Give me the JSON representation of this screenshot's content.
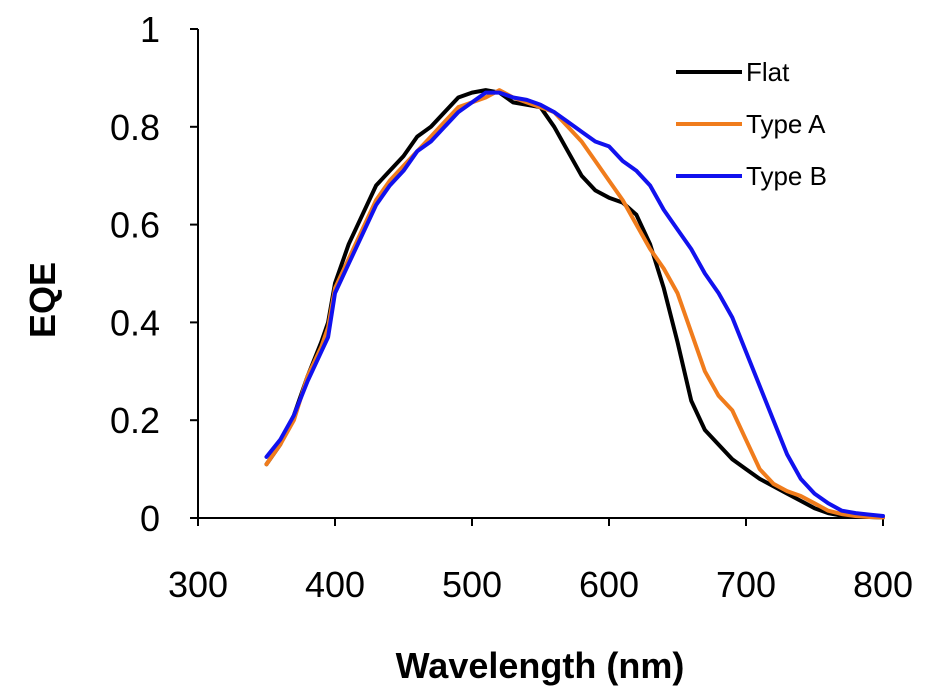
{
  "chart_data": {
    "type": "line",
    "xlabel": "Wavelength (nm)",
    "ylabel": "EQE",
    "xlim": [
      300,
      800
    ],
    "ylim": [
      0,
      1
    ],
    "xticks": [
      300,
      400,
      500,
      600,
      700,
      800
    ],
    "yticks": [
      0,
      0.2,
      0.4,
      0.6,
      0.8,
      1
    ],
    "ytick_labels": [
      "0",
      "0.2",
      "0.4",
      "0.6",
      "0.8",
      "1"
    ],
    "grid": false,
    "legend_position": "top-right",
    "series": [
      {
        "name": "Flat",
        "color": "#000000",
        "points": [
          [
            350,
            0.11
          ],
          [
            360,
            0.15
          ],
          [
            370,
            0.21
          ],
          [
            380,
            0.29
          ],
          [
            390,
            0.36
          ],
          [
            395,
            0.4
          ],
          [
            400,
            0.48
          ],
          [
            410,
            0.56
          ],
          [
            420,
            0.62
          ],
          [
            430,
            0.68
          ],
          [
            440,
            0.71
          ],
          [
            450,
            0.74
          ],
          [
            460,
            0.78
          ],
          [
            470,
            0.8
          ],
          [
            480,
            0.83
          ],
          [
            490,
            0.86
          ],
          [
            500,
            0.87
          ],
          [
            510,
            0.875
          ],
          [
            520,
            0.87
          ],
          [
            530,
            0.85
          ],
          [
            540,
            0.845
          ],
          [
            550,
            0.84
          ],
          [
            560,
            0.8
          ],
          [
            570,
            0.75
          ],
          [
            580,
            0.7
          ],
          [
            590,
            0.67
          ],
          [
            600,
            0.655
          ],
          [
            610,
            0.645
          ],
          [
            620,
            0.62
          ],
          [
            630,
            0.56
          ],
          [
            640,
            0.47
          ],
          [
            650,
            0.36
          ],
          [
            660,
            0.24
          ],
          [
            670,
            0.18
          ],
          [
            680,
            0.15
          ],
          [
            690,
            0.12
          ],
          [
            700,
            0.1
          ],
          [
            710,
            0.08
          ],
          [
            720,
            0.065
          ],
          [
            730,
            0.05
          ],
          [
            740,
            0.035
          ],
          [
            750,
            0.02
          ],
          [
            760,
            0.01
          ],
          [
            770,
            0.005
          ],
          [
            780,
            0.003
          ],
          [
            790,
            0.002
          ],
          [
            800,
            0.001
          ]
        ]
      },
      {
        "name": "Type A",
        "color": "#f07c1c",
        "points": [
          [
            350,
            0.11
          ],
          [
            360,
            0.15
          ],
          [
            370,
            0.2
          ],
          [
            380,
            0.29
          ],
          [
            390,
            0.35
          ],
          [
            395,
            0.39
          ],
          [
            400,
            0.47
          ],
          [
            410,
            0.53
          ],
          [
            420,
            0.59
          ],
          [
            430,
            0.65
          ],
          [
            440,
            0.69
          ],
          [
            450,
            0.72
          ],
          [
            460,
            0.75
          ],
          [
            470,
            0.78
          ],
          [
            480,
            0.81
          ],
          [
            490,
            0.84
          ],
          [
            500,
            0.85
          ],
          [
            510,
            0.86
          ],
          [
            520,
            0.875
          ],
          [
            530,
            0.86
          ],
          [
            540,
            0.85
          ],
          [
            550,
            0.84
          ],
          [
            560,
            0.83
          ],
          [
            570,
            0.8
          ],
          [
            580,
            0.77
          ],
          [
            590,
            0.73
          ],
          [
            600,
            0.69
          ],
          [
            610,
            0.65
          ],
          [
            620,
            0.6
          ],
          [
            630,
            0.55
          ],
          [
            640,
            0.51
          ],
          [
            650,
            0.46
          ],
          [
            660,
            0.38
          ],
          [
            670,
            0.3
          ],
          [
            680,
            0.25
          ],
          [
            690,
            0.22
          ],
          [
            700,
            0.16
          ],
          [
            710,
            0.1
          ],
          [
            720,
            0.07
          ],
          [
            730,
            0.055
          ],
          [
            740,
            0.045
          ],
          [
            750,
            0.03
          ],
          [
            760,
            0.015
          ],
          [
            770,
            0.008
          ],
          [
            780,
            0.004
          ],
          [
            790,
            0.002
          ],
          [
            800,
            0.001
          ]
        ]
      },
      {
        "name": "Type B",
        "color": "#1111ee",
        "points": [
          [
            350,
            0.125
          ],
          [
            360,
            0.16
          ],
          [
            370,
            0.21
          ],
          [
            380,
            0.28
          ],
          [
            390,
            0.34
          ],
          [
            395,
            0.37
          ],
          [
            400,
            0.46
          ],
          [
            410,
            0.52
          ],
          [
            420,
            0.58
          ],
          [
            430,
            0.64
          ],
          [
            440,
            0.68
          ],
          [
            450,
            0.71
          ],
          [
            460,
            0.75
          ],
          [
            470,
            0.77
          ],
          [
            480,
            0.8
          ],
          [
            490,
            0.83
          ],
          [
            500,
            0.85
          ],
          [
            510,
            0.87
          ],
          [
            520,
            0.87
          ],
          [
            530,
            0.86
          ],
          [
            540,
            0.855
          ],
          [
            550,
            0.845
          ],
          [
            560,
            0.83
          ],
          [
            570,
            0.81
          ],
          [
            580,
            0.79
          ],
          [
            590,
            0.77
          ],
          [
            600,
            0.76
          ],
          [
            610,
            0.73
          ],
          [
            620,
            0.71
          ],
          [
            630,
            0.68
          ],
          [
            640,
            0.63
          ],
          [
            650,
            0.59
          ],
          [
            660,
            0.55
          ],
          [
            670,
            0.5
          ],
          [
            680,
            0.46
          ],
          [
            690,
            0.41
          ],
          [
            700,
            0.34
          ],
          [
            710,
            0.27
          ],
          [
            720,
            0.2
          ],
          [
            730,
            0.13
          ],
          [
            740,
            0.08
          ],
          [
            750,
            0.05
          ],
          [
            760,
            0.03
          ],
          [
            770,
            0.015
          ],
          [
            780,
            0.01
          ],
          [
            790,
            0.007
          ],
          [
            800,
            0.004
          ]
        ]
      }
    ]
  }
}
